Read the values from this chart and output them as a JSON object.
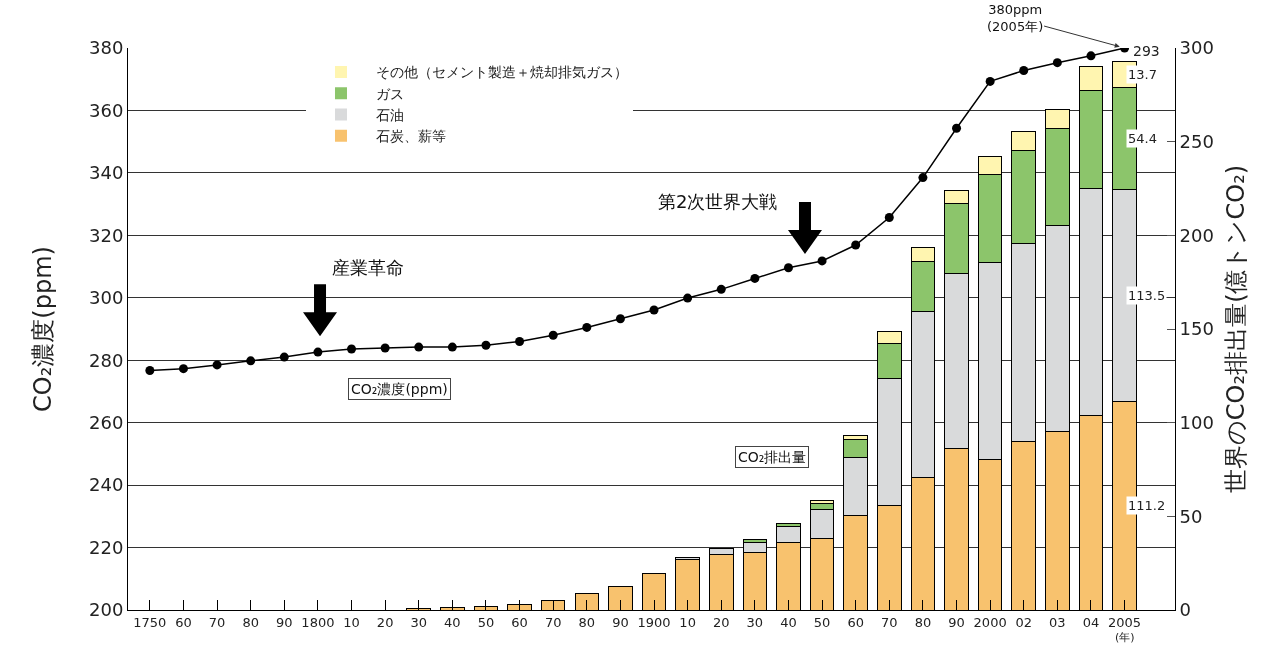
{
  "chart_data": {
    "type": "bar",
    "stacked": true,
    "categories": [
      "1750",
      "60",
      "70",
      "80",
      "90",
      "1800",
      "10",
      "20",
      "30",
      "40",
      "50",
      "60",
      "70",
      "80",
      "90",
      "1900",
      "10",
      "20",
      "30",
      "40",
      "50",
      "60",
      "70",
      "80",
      "90",
      "2000",
      "02",
      "03",
      "04",
      "2005"
    ],
    "series": [
      {
        "name": "石炭、薪等",
        "color": "#f8c26e",
        "axis": "y2",
        "values": [
          0,
          0,
          0,
          0,
          0,
          0,
          null,
          null,
          1,
          1.5,
          2,
          3.2,
          5.2,
          8.8,
          12.7,
          19.3,
          27,
          29.8,
          30.7,
          36,
          38.3,
          50.6,
          56,
          70.6,
          86,
          80.4,
          89.9,
          95.4,
          103.6,
          111.2
        ],
        "value_labels": [
          null,
          null,
          null,
          null,
          null,
          null,
          null,
          null,
          null,
          null,
          null,
          null,
          null,
          null,
          null,
          null,
          null,
          null,
          null,
          null,
          null,
          null,
          null,
          null,
          null,
          null,
          null,
          null,
          null,
          "111.2"
        ]
      },
      {
        "name": "石油",
        "color": "#d9dadb",
        "axis": "y2",
        "values": [
          null,
          null,
          null,
          null,
          null,
          null,
          null,
          null,
          null,
          null,
          null,
          null,
          null,
          null,
          null,
          null,
          1,
          3,
          5.3,
          8.7,
          15.4,
          31,
          67.5,
          88.9,
          93.5,
          104.9,
          106,
          109.7,
          121.5,
          113.5
        ],
        "value_labels": [
          null,
          null,
          null,
          null,
          null,
          null,
          null,
          null,
          null,
          null,
          null,
          null,
          null,
          null,
          null,
          null,
          null,
          null,
          null,
          null,
          null,
          null,
          null,
          null,
          null,
          null,
          null,
          null,
          null,
          "113.5"
        ]
      },
      {
        "name": "ガス",
        "color": "#8cc56b",
        "axis": "y2",
        "values": [
          null,
          null,
          null,
          null,
          null,
          null,
          null,
          null,
          null,
          null,
          null,
          null,
          null,
          null,
          null,
          null,
          null,
          null,
          1.4,
          1.4,
          3.2,
          9.4,
          18.7,
          26.5,
          37.3,
          47.3,
          49.6,
          51.7,
          52.2,
          54.4
        ],
        "value_labels": [
          null,
          null,
          null,
          null,
          null,
          null,
          null,
          null,
          null,
          null,
          null,
          null,
          null,
          null,
          null,
          null,
          null,
          null,
          null,
          null,
          null,
          null,
          null,
          null,
          null,
          null,
          null,
          null,
          null,
          "54.4"
        ]
      },
      {
        "name": "その他（セメント製造＋焼却排気ガス）",
        "color": "#fff5b0",
        "axis": "y2",
        "values": [
          null,
          null,
          null,
          null,
          null,
          null,
          null,
          null,
          null,
          null,
          null,
          null,
          null,
          null,
          null,
          null,
          null,
          null,
          null,
          null,
          1.5,
          2.1,
          6.3,
          7.7,
          7.3,
          9.4,
          9.8,
          10.6,
          12.7,
          13.7
        ],
        "value_labels": [
          null,
          null,
          null,
          null,
          null,
          null,
          null,
          null,
          null,
          null,
          null,
          null,
          null,
          null,
          null,
          null,
          null,
          null,
          null,
          null,
          null,
          null,
          null,
          null,
          null,
          null,
          null,
          null,
          null,
          "13.7"
        ]
      },
      {
        "type": "line",
        "color": "#000000",
        "axis": "y",
        "values": [
          276.7,
          277.3,
          278.5,
          279.8,
          281,
          282.6,
          283.6,
          283.9,
          284.2,
          284.2,
          284.8,
          286,
          288,
          290.5,
          293.3,
          296.1,
          299.9,
          302.7,
          306.2,
          309.6,
          311.8,
          316.9,
          325.7,
          338.5,
          354.3,
          369.3,
          372.8,
          375.3,
          377.5,
          380
        ]
      }
    ],
    "totals": [
      null,
      null,
      null,
      null,
      null,
      null,
      null,
      null,
      null,
      null,
      null,
      null,
      null,
      null,
      null,
      null,
      null,
      null,
      null,
      null,
      null,
      null,
      null,
      null,
      null,
      null,
      null,
      null,
      null,
      "293"
    ],
    "ylabel": "CO₂濃度(ppm)",
    "y2label": "世界のCO₂排出量(億トンCO₂)",
    "xlabel": "(年)",
    "ylim": [
      200,
      380
    ],
    "yticks": [
      200,
      220,
      240,
      260,
      280,
      300,
      320,
      340,
      360,
      380
    ],
    "y2lim": [
      0,
      300
    ],
    "y2ticks": [
      0,
      50,
      100,
      150,
      200,
      250,
      300
    ],
    "grid": "y",
    "legend": "top left",
    "marker": "circle",
    "line_style": "solid",
    "annotations": [
      {
        "text": "380ppm\n(2005年)",
        "x": "2005",
        "y": 380
      },
      "産業革命",
      "第2次世界大戦",
      "CO₂濃度(ppm)",
      "CO₂排出量"
    ]
  }
}
